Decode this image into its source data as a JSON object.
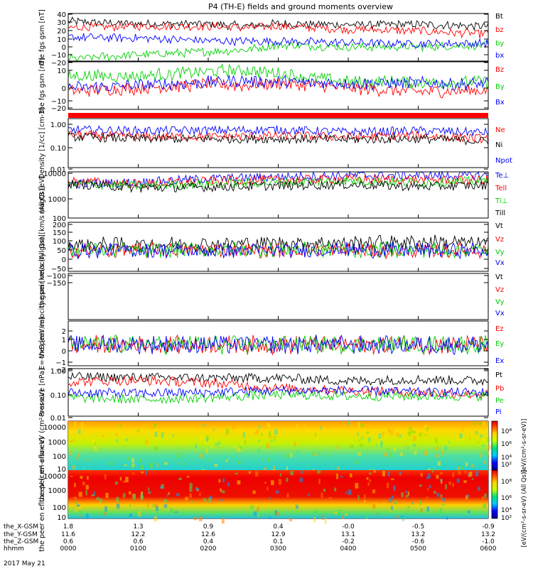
{
  "title": "P4 (TH-E) fields and ground moments overview",
  "date_label": "2017 May 21",
  "colors": {
    "black": "#000000",
    "red": "#ff0000",
    "green": "#00d000",
    "blue": "#0000ff",
    "bg": "#ffffff"
  },
  "time_axis": {
    "rows": [
      {
        "label": "the_X-GSM",
        "values": [
          "1.8",
          "1.3",
          "0.9",
          "0.4",
          "-0.0",
          "-0.5",
          "-0.9"
        ]
      },
      {
        "label": "the_Y-GSM",
        "values": [
          "11.6",
          "12.2",
          "12.6",
          "12.9",
          "13.1",
          "13.2",
          "13.2"
        ]
      },
      {
        "label": "the_Z-GSM",
        "values": [
          "0.6",
          "0.6",
          "0.4",
          "0.1",
          "-0.2",
          "-0.6",
          "-1.0"
        ]
      },
      {
        "label": "hhmm",
        "values": [
          "0000",
          "0100",
          "0200",
          "0300",
          "0400",
          "0500",
          "0600"
        ]
      }
    ]
  },
  "colorbars": [
    {
      "label": "[eV/(cm²-s-sr-eV)]",
      "ticks": [
        "10⁸",
        "10⁶",
        "10⁴",
        "10²"
      ]
    },
    {
      "label": "[eV/(cm²-s-sr-eV) (All Qs)]",
      "ticks": [
        "10⁸",
        "10⁶",
        "10⁴",
        "10²"
      ]
    }
  ],
  "chart_data": [
    {
      "type": "line",
      "ylabel": "the fgs gsm [nT]",
      "yticks": [
        "40",
        "30",
        "20",
        "10",
        "0",
        "−10",
        "−20"
      ],
      "ylim": [
        -20,
        40
      ],
      "legend": [
        "Bt",
        "bz",
        "by",
        "bx"
      ],
      "series": [
        {
          "name": "Bt",
          "color": "#000000",
          "x": [
            0,
            1,
            2,
            2.5,
            3,
            4,
            5,
            6
          ],
          "values": [
            30,
            27,
            27,
            24,
            27,
            26,
            26,
            24
          ]
        },
        {
          "name": "bz",
          "color": "#ff0000",
          "x": [
            0,
            1,
            2,
            2.5,
            3,
            4,
            5,
            6
          ],
          "values": [
            22,
            24,
            24,
            22,
            24,
            20,
            18,
            14
          ]
        },
        {
          "name": "by",
          "color": "#00d000",
          "x": [
            0,
            1,
            2,
            2.5,
            3,
            4,
            5,
            6
          ],
          "values": [
            -17,
            -12,
            -8,
            -6,
            0,
            -2,
            -2,
            0
          ]
        },
        {
          "name": "bx",
          "color": "#0000ff",
          "x": [
            0,
            1,
            2,
            2.5,
            3,
            4,
            5,
            6
          ],
          "values": [
            10,
            9,
            6,
            5,
            5,
            3,
            2,
            2
          ]
        }
      ]
    },
    {
      "type": "line",
      "ylabel": "the fgs gsm [nT]",
      "yticks": [
        "10",
        "0",
        "−10",
        "−20"
      ],
      "ylim": [
        -25,
        15
      ],
      "legend": [
        "Bz",
        "By",
        "Bx"
      ],
      "series": [
        {
          "name": "Bz",
          "color": "#ff0000",
          "x": [
            0,
            1,
            2,
            2.5,
            3,
            4,
            5,
            6
          ],
          "values": [
            -10,
            -7,
            -4,
            -5,
            -3,
            -7,
            -10,
            -9
          ]
        },
        {
          "name": "By",
          "color": "#00d000",
          "x": [
            0,
            1,
            2,
            2.5,
            3,
            4,
            5,
            6
          ],
          "values": [
            3,
            3,
            7,
            8,
            5,
            -2,
            -2,
            -2
          ]
        },
        {
          "name": "Bx",
          "color": "#0000ff",
          "x": [
            0,
            1,
            2,
            2.5,
            3,
            4,
            5,
            6
          ],
          "values": [
            -7,
            -5,
            -2,
            -1,
            -2,
            -3,
            -3,
            -4
          ]
        }
      ]
    },
    {
      "type": "line",
      "scale": "log",
      "ylabel": "Density [1/cc] [cm-3]",
      "yticks": [
        "1.00",
        "0.10",
        "0.01"
      ],
      "ylim": [
        0.01,
        1
      ],
      "legend": [
        "Ne",
        "Ni",
        "Npot"
      ],
      "series": [
        {
          "name": "Npot",
          "color": "#0000ff",
          "x": [
            0,
            1,
            2,
            3,
            4,
            5,
            6
          ],
          "values": [
            0.35,
            0.32,
            0.33,
            0.35,
            0.28,
            0.32,
            0.27
          ]
        },
        {
          "name": "Ne",
          "color": "#ff0000",
          "x": [
            0,
            1,
            2,
            3,
            4,
            5,
            6
          ],
          "values": [
            0.22,
            0.18,
            0.18,
            0.2,
            0.18,
            0.2,
            0.15
          ]
        },
        {
          "name": "Ni",
          "color": "#000000",
          "x": [
            0,
            1,
            2,
            3,
            4,
            5,
            6
          ],
          "values": [
            0.18,
            0.15,
            0.15,
            0.15,
            0.14,
            0.15,
            0.12
          ]
        }
      ]
    },
    {
      "type": "line",
      "scale": "log",
      "ylabel": "magt3 [eV]",
      "yticks": [
        "10000",
        "1000",
        "100"
      ],
      "ylim": [
        100,
        10000
      ],
      "legend": [
        "Te⊥",
        "Tell",
        "Ti⊥",
        "Till"
      ],
      "series": [
        {
          "name": "Te⊥",
          "color": "#0000ff",
          "x": [
            0,
            1,
            2,
            3,
            4,
            5,
            6
          ],
          "values": [
            3000,
            3500,
            5000,
            6000,
            7000,
            7000,
            7000
          ]
        },
        {
          "name": "Tell",
          "color": "#ff0000",
          "x": [
            0,
            1,
            2,
            3,
            4,
            5,
            6
          ],
          "values": [
            4000,
            3000,
            4000,
            4500,
            5000,
            4500,
            4500
          ]
        },
        {
          "name": "Ti⊥",
          "color": "#00d000",
          "x": [
            0,
            1,
            2,
            3,
            4,
            5,
            6
          ],
          "values": [
            3000,
            2500,
            3000,
            3500,
            4000,
            3500,
            4000
          ]
        },
        {
          "name": "Till",
          "color": "#000000",
          "x": [
            0,
            1,
            2,
            3,
            4,
            5,
            6
          ],
          "values": [
            3000,
            2000,
            2200,
            2500,
            2800,
            2300,
            2600
          ]
        }
      ]
    },
    {
      "type": "line",
      "ylabel": "the peir velocity gsm [km/s (All Qs)]",
      "yticks": [
        "200",
        "150",
        "100",
        "50",
        "0",
        "−50",
        "−100",
        "−150"
      ],
      "ylim": [
        -150,
        200
      ],
      "legend": [
        "Vt",
        "Vz",
        "Vy",
        "Vx"
      ],
      "series": [
        {
          "name": "Vt",
          "color": "#000000",
          "x": [
            0,
            1,
            2,
            3,
            4,
            5,
            6
          ],
          "values": [
            40,
            40,
            45,
            50,
            55,
            60,
            50
          ]
        },
        {
          "name": "Vz",
          "color": "#ff0000",
          "x": [
            0,
            1,
            2,
            3,
            4,
            5,
            6
          ],
          "values": [
            0,
            0,
            5,
            0,
            0,
            -5,
            0
          ]
        },
        {
          "name": "Vy",
          "color": "#00d000",
          "x": [
            0,
            1,
            2,
            3,
            4,
            5,
            6
          ],
          "values": [
            5,
            0,
            0,
            10,
            0,
            5,
            0
          ]
        },
        {
          "name": "Vx",
          "color": "#0000ff",
          "x": [
            0,
            1,
            2,
            3,
            4,
            5,
            6
          ],
          "values": [
            -5,
            0,
            -5,
            0,
            5,
            0,
            0
          ]
        }
      ]
    },
    {
      "type": "line",
      "ylabel": "the peer velocity gsm [km/s (All Qs)]",
      "yticks": [],
      "ylim": [
        -100,
        100
      ],
      "legend": [
        "Vt",
        "Vz",
        "Vy",
        "Vx"
      ],
      "series": []
    },
    {
      "type": "line",
      "ylabel": "E=-VxB [mV/m]",
      "yticks": [
        "2",
        "1",
        "0",
        "−1",
        "−2"
      ],
      "ylim": [
        -2.5,
        2.8
      ],
      "legend": [
        "Ez",
        "Ey",
        "Ex"
      ],
      "series": [
        {
          "name": "Ez",
          "color": "#ff0000",
          "x": [
            0,
            1,
            2,
            3,
            4,
            5,
            6
          ],
          "values": [
            0,
            0,
            0,
            0,
            0,
            0,
            0
          ]
        },
        {
          "name": "Ey",
          "color": "#00d000",
          "x": [
            0,
            1,
            2,
            3,
            4,
            5,
            6
          ],
          "values": [
            0,
            0,
            0,
            0,
            0,
            0,
            0
          ]
        },
        {
          "name": "Ex",
          "color": "#0000ff",
          "x": [
            0,
            1,
            2,
            3,
            4,
            5,
            6
          ],
          "values": [
            0,
            0,
            0,
            0,
            0,
            0,
            0
          ]
        }
      ]
    },
    {
      "type": "line",
      "scale": "log",
      "ylabel": "Pressure [nPa]",
      "yticks": [
        "1.00",
        "0.10",
        "0.01"
      ],
      "ylim": [
        0.01,
        1
      ],
      "legend": [
        "Pt",
        "Pb",
        "Pe",
        "Pi"
      ],
      "series": [
        {
          "name": "Pt",
          "color": "#000000",
          "x": [
            0,
            1,
            2,
            3,
            4,
            5,
            6
          ],
          "values": [
            0.45,
            0.42,
            0.4,
            0.4,
            0.3,
            0.35,
            0.3
          ]
        },
        {
          "name": "Pb",
          "color": "#ff0000",
          "x": [
            0,
            1,
            2,
            3,
            4,
            5,
            6
          ],
          "values": [
            0.28,
            0.32,
            0.25,
            0.15,
            0.12,
            0.1,
            0.08
          ]
        },
        {
          "name": "Pe",
          "color": "#00d000",
          "x": [
            0,
            1,
            2,
            3,
            4,
            5,
            6
          ],
          "values": [
            0.06,
            0.05,
            0.06,
            0.08,
            0.07,
            0.07,
            0.07
          ]
        },
        {
          "name": "Pi",
          "color": "#0000ff",
          "x": [
            0,
            1,
            2,
            3,
            4,
            5,
            6
          ],
          "values": [
            0.1,
            0.09,
            0.1,
            0.12,
            0.12,
            0.1,
            0.1
          ]
        }
      ]
    },
    {
      "type": "heatmap",
      "scale": "log",
      "ylabel": "the peir en eflux eV (cm²-s-sr-eV)",
      "yticks": [
        "10000",
        "1000",
        "100",
        "10"
      ],
      "ylim": [
        10,
        20000
      ]
    },
    {
      "type": "heatmap",
      "scale": "log",
      "ylabel": "the peer en eflux eV (cm²-s-sr-eV)",
      "yticks": [
        "10000",
        "1000",
        "100",
        "10"
      ],
      "ylim": [
        10,
        20000
      ]
    }
  ]
}
